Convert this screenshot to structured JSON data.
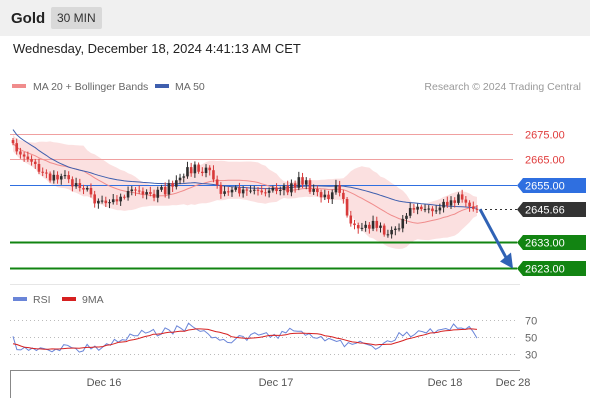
{
  "header": {
    "title": "Gold",
    "timeframe": "30 MIN"
  },
  "datetime": "Wednesday, December 18, 2024 4:41:13 AM CET",
  "credit": "Research © 2024 Trading Central",
  "colors": {
    "bb_band": "#fadada",
    "ma20": "#f08c8c",
    "ma50": "#3f5fae",
    "resistance": "#e03c3c",
    "pivot": "#2f6fe0",
    "support": "#128412",
    "current": "#333333",
    "arrow": "#3062b5",
    "candle_up": "#2d2d2d",
    "candle_down": "#d83a3a",
    "rsi": "#6a85d8",
    "rsi_ma": "#d62020"
  },
  "chart_data": [
    {
      "type": "candlestick",
      "title": "",
      "legend": [
        {
          "label": "MA 20 + Bollinger Bands",
          "color": "#f08c8c"
        },
        {
          "label": "MA 50",
          "color": "#3f5fae"
        }
      ],
      "x_ticks": [
        "Dec 16",
        "Dec 17",
        "Dec 18",
        "Dec 28"
      ],
      "ylim": [
        2617,
        2690
      ],
      "levels": [
        {
          "value": 2675.0,
          "label": "2675.00",
          "kind": "resistance"
        },
        {
          "value": 2665.0,
          "label": "2665.00",
          "kind": "resistance"
        },
        {
          "value": 2655.0,
          "label": "2655.00",
          "kind": "pivot"
        },
        {
          "value": 2645.66,
          "label": "2645.66",
          "kind": "current"
        },
        {
          "value": 2633.0,
          "label": "2633.00",
          "kind": "support"
        },
        {
          "value": 2623.0,
          "label": "2623.00",
          "kind": "support"
        }
      ],
      "close": [
        2671.3,
        2668.1,
        2666.9,
        2666.1,
        2665.1,
        2664.1,
        2663.2,
        2660.2,
        2659.9,
        2659.5,
        2656.8,
        2659.0,
        2657.2,
        2658.5,
        2658.9,
        2657.3,
        2654.5,
        2655.8,
        2653.9,
        2653.3,
        2653.9,
        2651.4,
        2647.9,
        2648.9,
        2649.0,
        2648.0,
        2648.4,
        2649.5,
        2648.7,
        2650.5,
        2650.2,
        2652.7,
        2653.3,
        2652.9,
        2652.6,
        2651.4,
        2652.3,
        2651.6,
        2650.1,
        2653.2,
        2654.3,
        2651.4,
        2655.8,
        2654.4,
        2656.9,
        2657.9,
        2658.4,
        2662.0,
        2659.6,
        2663.0,
        2660.2,
        2659.7,
        2661.8,
        2660.8,
        2657.2,
        2655.1,
        2651.6,
        2652.6,
        2652.2,
        2653.2,
        2654.1,
        2651.8,
        2653.3,
        2652.9,
        2652.9,
        2653.2,
        2652.9,
        2652.2,
        2652.0,
        2652.9,
        2654.0,
        2652.7,
        2653.1,
        2654.8,
        2652.2,
        2655.7,
        2654.0,
        2658.1,
        2655.2,
        2656.9,
        2652.4,
        2653.5,
        2652.3,
        2650.3,
        2651.3,
        2649.6,
        2652.2,
        2655.0,
        2652.0,
        2649.6,
        2643.2,
        2640.1,
        2639.5,
        2638.2,
        2638.4,
        2639.6,
        2638.1,
        2641.1,
        2638.4,
        2639.3,
        2635.8,
        2635.9,
        2637.6,
        2638.1,
        2638.2,
        2641.9,
        2643.1,
        2646.1,
        2645.5,
        2646.6,
        2645.7,
        2645.7,
        2645.9,
        2644.9,
        2645.2,
        2646.3,
        2648.5,
        2647.1,
        2649.1,
        2648.1,
        2651.4,
        2649.4,
        2648.2,
        2646.7,
        2645.8,
        2645.66
      ]
    },
    {
      "type": "line",
      "title": "",
      "legend": [
        {
          "label": "RSI",
          "color": "#6a85d8"
        },
        {
          "label": "9MA",
          "color": "#d62020"
        }
      ],
      "y_ticks": [
        "70",
        "50",
        "30"
      ],
      "ylim": [
        15,
        80
      ],
      "series": [
        {
          "name": "RSI",
          "values": [
            50.7,
            34.8,
            34.4,
            37.6,
            33.8,
            36.7,
            33.6,
            36.9,
            35.9,
            34.4,
            32.1,
            35.4,
            33.5,
            40.6,
            39.9,
            37.1,
            36.4,
            31.7,
            33.2,
            41.0,
            35.5,
            39.0,
            33.9,
            37.7,
            41.9,
            39.9,
            47.1,
            43.7,
            46.7,
            46.0,
            53.5,
            51.5,
            51.4,
            58.0,
            54.6,
            56.2,
            59.0,
            51.2,
            53.3,
            60.9,
            58.5,
            53.5,
            63.4,
            60.5,
            57.0,
            66.5,
            62.6,
            59.4,
            56.6,
            57.6,
            53.9,
            49.0,
            49.6,
            46.1,
            47.0,
            43.4,
            42.8,
            47.1,
            51.6,
            50.6,
            45.9,
            52.9,
            55.1,
            52.2,
            53.5,
            55.1,
            49.6,
            53.0,
            48.3,
            56.6,
            54.9,
            60.4,
            57.3,
            56.9,
            56.9,
            51.9,
            54.0,
            49.1,
            48.5,
            50.5,
            45.3,
            48.2,
            46.4,
            44.5,
            45.9,
            38.2,
            43.2,
            41.1,
            42.3,
            44.8,
            42.2,
            40.8,
            39.3,
            35.1,
            37.6,
            42.3,
            45.3,
            44.0,
            46.2,
            55.2,
            51.2,
            55.8,
            50.2,
            52.9,
            57.4,
            56.4,
            54.7,
            59.8,
            54.4,
            58.2,
            59.1,
            60.1,
            58.2,
            65.5,
            60.4,
            60.8,
            59.1,
            62.6,
            56.3,
            48.6
          ]
        },
        {
          "name": "9MA",
          "values": [
            41.9,
            40.9,
            39.1,
            37.5,
            37.1,
            36.2,
            35.8,
            35.6,
            35.2,
            35.1,
            35.6,
            35.5,
            35.6,
            36.0,
            36.3,
            36.6,
            36.6,
            36.3,
            36.9,
            37.4,
            37.4,
            37.9,
            37.9,
            38.4,
            39.9,
            40.5,
            41.8,
            43.4,
            43.9,
            44.4,
            46.0,
            46.8,
            47.8,
            49.3,
            50.6,
            51.6,
            53.3,
            53.4,
            53.9,
            54.8,
            55.7,
            55.7,
            56.4,
            57.0,
            56.9,
            58.3,
            58.9,
            59.7,
            59.6,
            59.4,
            59.1,
            57.7,
            56.4,
            55.6,
            54.3,
            53.0,
            50.3,
            49.6,
            49.1,
            48.6,
            48.2,
            48.6,
            48.8,
            49.3,
            50.0,
            51.1,
            51.8,
            51.9,
            51.8,
            52.0,
            52.6,
            53.8,
            54.3,
            54.5,
            54.6,
            54.4,
            54.2,
            54.0,
            53.7,
            53.0,
            51.5,
            50.7,
            49.9,
            48.6,
            47.7,
            46.5,
            45.2,
            44.0,
            43.7,
            42.7,
            42.6,
            41.8,
            41.1,
            40.3,
            40.9,
            40.9,
            41.2,
            41.3,
            42.7,
            44.0,
            45.6,
            47.4,
            48.3,
            49.5,
            51.0,
            52.0,
            53.1,
            54.7,
            55.0,
            55.7,
            56.9,
            57.4,
            57.7,
            58.5,
            58.7,
            58.9,
            59.0,
            59.8,
            59.5,
            59.0
          ]
        }
      ]
    }
  ]
}
